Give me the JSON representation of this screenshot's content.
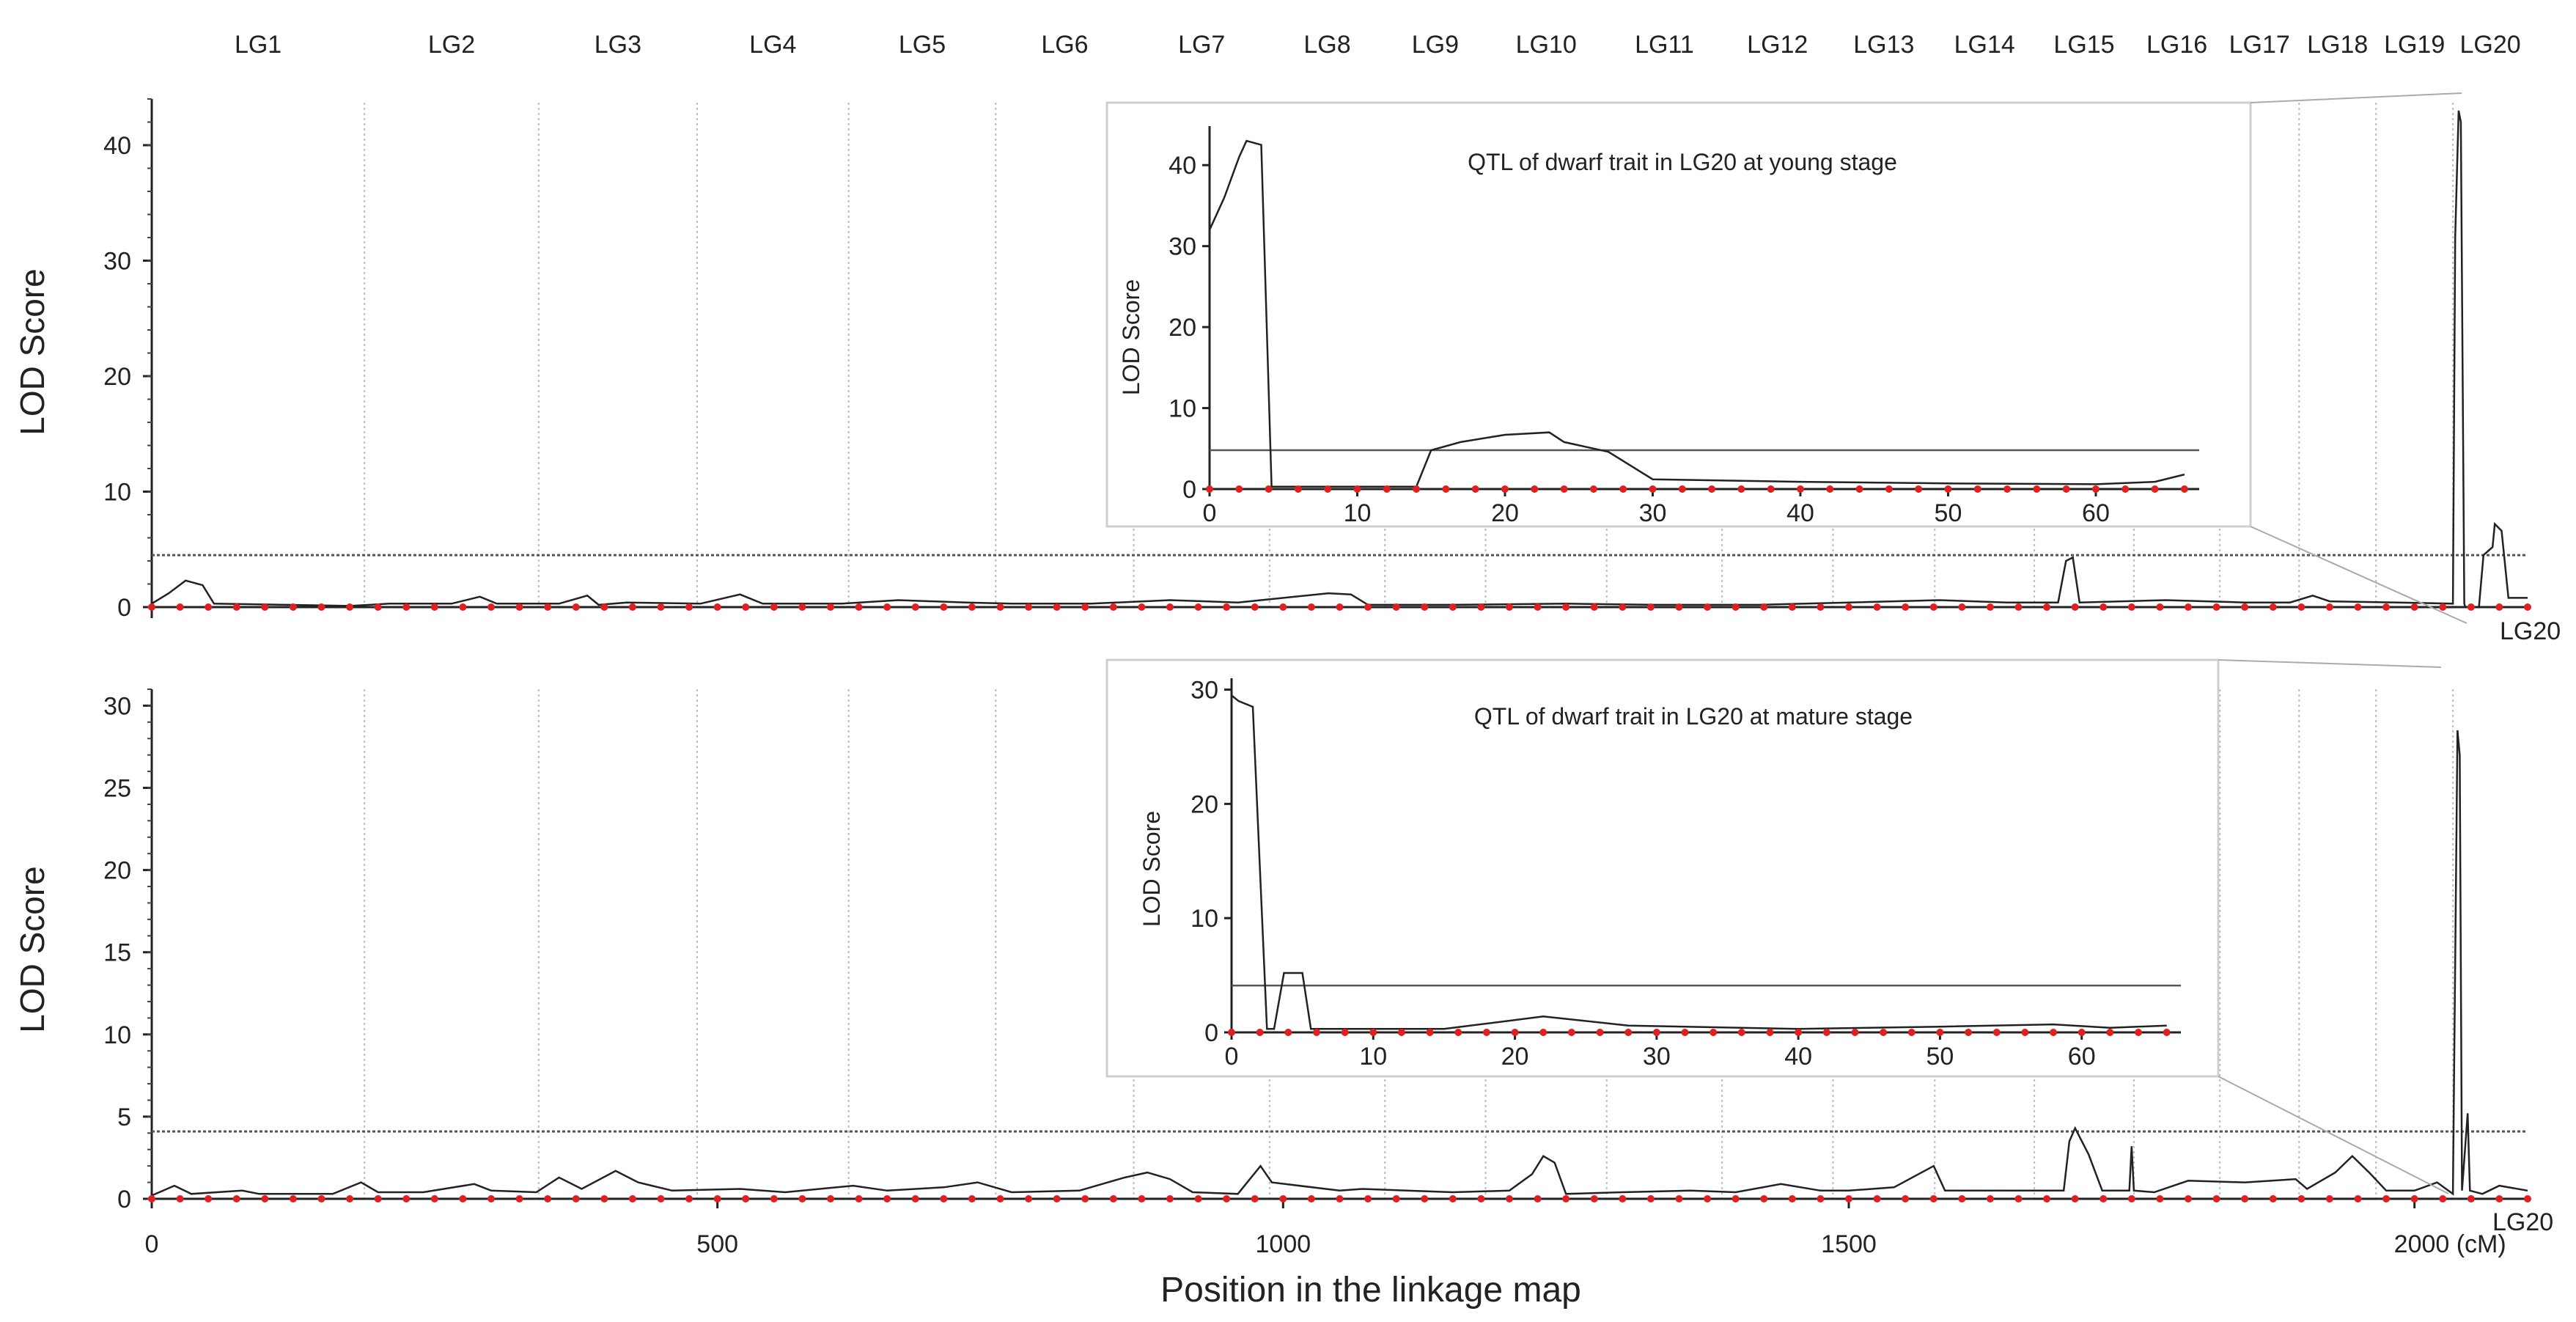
{
  "figure": {
    "linkage_groups": [
      "LG1",
      "LG2",
      "LG3",
      "LG4",
      "LG5",
      "LG6",
      "LG7",
      "LG8",
      "LG9",
      "LG10",
      "LG11",
      "LG12",
      "LG13",
      "LG14",
      "LG15",
      "LG16",
      "LG17",
      "LG18",
      "LG19",
      "LG20"
    ],
    "lg_boundaries_cM": [
      0,
      188,
      342,
      482,
      616,
      746,
      868,
      988,
      1090,
      1179,
      1286,
      1388,
      1486,
      1576,
      1664,
      1752,
      1828,
      1898,
      1966,
      2034,
      2100
    ],
    "x_axis_label": "Position in the linkage map",
    "x_ticks": [
      "0",
      "500",
      "1000",
      "1500",
      "2000 (cM)"
    ],
    "x_tick_values": [
      0,
      500,
      1000,
      1500,
      2000
    ],
    "lg20_label": "LG20",
    "inset_x_ticks": [
      "0",
      "10",
      "20",
      "30",
      "40",
      "50",
      "60"
    ],
    "inset_x_tick_values": [
      0,
      10,
      20,
      30,
      40,
      50,
      60
    ],
    "inset_x_range": [
      0,
      67
    ],
    "colors": {
      "curve": "#222222",
      "threshold": "#555555",
      "markers": "#e02020",
      "guide": "#9a9a9a"
    }
  },
  "chart_data": [
    {
      "type": "line",
      "id": "young-genome",
      "ylabel": "LOD Score",
      "yticks": [
        "0",
        "10",
        "20",
        "30",
        "40"
      ],
      "ytick_values": [
        0,
        10,
        20,
        30,
        40
      ],
      "ylim": [
        0,
        44
      ],
      "threshold": 4.5,
      "series": [
        {
          "points": [
            [
              0,
              0.3
            ],
            [
              15,
              1.2
            ],
            [
              30,
              2.3
            ],
            [
              45,
              1.9
            ],
            [
              55,
              0.3
            ],
            [
              120,
              0.2
            ],
            [
              175,
              0.1
            ],
            [
              210,
              0.3
            ],
            [
              265,
              0.3
            ],
            [
              290,
              0.9
            ],
            [
              305,
              0.3
            ],
            [
              360,
              0.3
            ],
            [
              385,
              1.0
            ],
            [
              395,
              0.2
            ],
            [
              420,
              0.4
            ],
            [
              485,
              0.3
            ],
            [
              520,
              1.1
            ],
            [
              540,
              0.3
            ],
            [
              610,
              0.3
            ],
            [
              660,
              0.6
            ],
            [
              720,
              0.4
            ],
            [
              760,
              0.3
            ],
            [
              830,
              0.3
            ],
            [
              900,
              0.6
            ],
            [
              960,
              0.4
            ],
            [
              1040,
              1.2
            ],
            [
              1060,
              1.1
            ],
            [
              1075,
              0.2
            ],
            [
              1150,
              0.2
            ],
            [
              1250,
              0.3
            ],
            [
              1330,
              0.2
            ],
            [
              1420,
              0.2
            ],
            [
              1500,
              0.4
            ],
            [
              1580,
              0.6
            ],
            [
              1640,
              0.4
            ],
            [
              1685,
              0.4
            ],
            [
              1692,
              4.0
            ],
            [
              1698,
              4.3
            ],
            [
              1704,
              0.4
            ],
            [
              1780,
              0.6
            ],
            [
              1850,
              0.4
            ],
            [
              1890,
              0.4
            ],
            [
              1910,
              1.0
            ],
            [
              1925,
              0.5
            ],
            [
              1985,
              0.4
            ],
            [
              2034,
              0.3
            ],
            [
              2036,
              32
            ],
            [
              2039,
              43
            ],
            [
              2041,
              42
            ],
            [
              2044,
              0.3
            ],
            [
              2045,
              0
            ],
            [
              2057,
              0
            ],
            [
              2061,
              4.5
            ],
            [
              2069,
              5.2
            ],
            [
              2071,
              7.2
            ],
            [
              2077,
              6.6
            ],
            [
              2083,
              0.8
            ],
            [
              2100,
              0.8
            ]
          ]
        }
      ],
      "markers_cM": [
        0,
        25,
        50,
        75,
        100,
        125,
        150,
        175,
        200,
        225,
        250,
        275,
        300,
        325,
        350,
        375,
        400,
        425,
        450,
        475,
        500,
        525,
        550,
        575,
        600,
        625,
        650,
        675,
        700,
        725,
        750,
        775,
        800,
        825,
        850,
        875,
        900,
        925,
        950,
        975,
        1000,
        1025,
        1050,
        1075,
        1100,
        1125,
        1150,
        1175,
        1200,
        1225,
        1250,
        1275,
        1300,
        1325,
        1350,
        1375,
        1400,
        1425,
        1450,
        1475,
        1500,
        1525,
        1550,
        1575,
        1600,
        1625,
        1650,
        1675,
        1700,
        1725,
        1750,
        1775,
        1800,
        1825,
        1850,
        1875,
        1900,
        1925,
        1950,
        1975,
        2000,
        2025,
        2050,
        2075,
        2100
      ]
    },
    {
      "type": "line",
      "id": "mature-genome",
      "ylabel": "LOD Score",
      "yticks": [
        "0",
        "5",
        "10",
        "15",
        "20",
        "25",
        "30"
      ],
      "ytick_values": [
        0,
        5,
        10,
        15,
        20,
        25,
        30
      ],
      "ylim": [
        0,
        31
      ],
      "threshold": 4.1,
      "series": [
        {
          "points": [
            [
              0,
              0.2
            ],
            [
              20,
              0.8
            ],
            [
              35,
              0.3
            ],
            [
              80,
              0.5
            ],
            [
              95,
              0.3
            ],
            [
              160,
              0.3
            ],
            [
              185,
              1.0
            ],
            [
              200,
              0.4
            ],
            [
              240,
              0.4
            ],
            [
              285,
              0.9
            ],
            [
              300,
              0.5
            ],
            [
              340,
              0.4
            ],
            [
              360,
              1.3
            ],
            [
              380,
              0.6
            ],
            [
              410,
              1.7
            ],
            [
              430,
              1.0
            ],
            [
              460,
              0.5
            ],
            [
              520,
              0.6
            ],
            [
              560,
              0.4
            ],
            [
              620,
              0.8
            ],
            [
              650,
              0.5
            ],
            [
              700,
              0.7
            ],
            [
              730,
              1.0
            ],
            [
              760,
              0.4
            ],
            [
              820,
              0.5
            ],
            [
              860,
              1.3
            ],
            [
              880,
              1.6
            ],
            [
              900,
              1.2
            ],
            [
              920,
              0.4
            ],
            [
              960,
              0.3
            ],
            [
              980,
              2.0
            ],
            [
              990,
              1.0
            ],
            [
              1050,
              0.5
            ],
            [
              1070,
              0.6
            ],
            [
              1150,
              0.4
            ],
            [
              1200,
              0.5
            ],
            [
              1220,
              1.5
            ],
            [
              1230,
              2.6
            ],
            [
              1240,
              2.2
            ],
            [
              1250,
              0.3
            ],
            [
              1300,
              0.4
            ],
            [
              1360,
              0.5
            ],
            [
              1400,
              0.4
            ],
            [
              1440,
              0.9
            ],
            [
              1475,
              0.5
            ],
            [
              1500,
              0.5
            ],
            [
              1540,
              0.7
            ],
            [
              1575,
              2.0
            ],
            [
              1585,
              0.5
            ],
            [
              1650,
              0.5
            ],
            [
              1690,
              0.5
            ],
            [
              1695,
              3.5
            ],
            [
              1700,
              4.3
            ],
            [
              1712,
              2.7
            ],
            [
              1724,
              0.5
            ],
            [
              1748,
              0.5
            ],
            [
              1750,
              3.2
            ],
            [
              1752,
              0.5
            ],
            [
              1770,
              0.4
            ],
            [
              1800,
              1.1
            ],
            [
              1850,
              1.0
            ],
            [
              1895,
              1.2
            ],
            [
              1905,
              0.6
            ],
            [
              1930,
              1.6
            ],
            [
              1945,
              2.6
            ],
            [
              1960,
              1.6
            ],
            [
              1975,
              0.5
            ],
            [
              2000,
              0.5
            ],
            [
              2020,
              1.0
            ],
            [
              2034,
              0.3
            ],
            [
              2038,
              28.5
            ],
            [
              2040,
              27
            ],
            [
              2042,
              0.5
            ],
            [
              2047,
              5.2
            ],
            [
              2049,
              0.5
            ],
            [
              2060,
              0.3
            ],
            [
              2075,
              0.8
            ],
            [
              2100,
              0.5
            ]
          ]
        }
      ],
      "markers_cM": [
        0,
        25,
        50,
        75,
        100,
        125,
        150,
        175,
        200,
        225,
        250,
        275,
        300,
        325,
        350,
        375,
        400,
        425,
        450,
        475,
        500,
        525,
        550,
        575,
        600,
        625,
        650,
        675,
        700,
        725,
        750,
        775,
        800,
        825,
        850,
        875,
        900,
        925,
        950,
        975,
        1000,
        1025,
        1050,
        1075,
        1100,
        1125,
        1150,
        1175,
        1200,
        1225,
        1250,
        1275,
        1300,
        1325,
        1350,
        1375,
        1400,
        1425,
        1450,
        1475,
        1500,
        1525,
        1550,
        1575,
        1600,
        1625,
        1650,
        1675,
        1700,
        1725,
        1750,
        1775,
        1800,
        1825,
        1850,
        1875,
        1900,
        1925,
        1950,
        1975,
        2000,
        2025,
        2050,
        2075,
        2100
      ]
    },
    {
      "type": "line",
      "id": "young-inset",
      "title": "QTL of dwarf trait in LG20 at young stage",
      "ylabel": "LOD Score",
      "yticks": [
        "0",
        "10",
        "20",
        "30",
        "40"
      ],
      "ytick_values": [
        0,
        10,
        20,
        30,
        40
      ],
      "ylim": [
        0,
        45
      ],
      "threshold": 4.8,
      "series": [
        {
          "points": [
            [
              0,
              32
            ],
            [
              1,
              36
            ],
            [
              2,
              41
            ],
            [
              2.5,
              43
            ],
            [
              3.5,
              42.5
            ],
            [
              4.2,
              0.3
            ],
            [
              10,
              0.3
            ],
            [
              14,
              0.3
            ],
            [
              15,
              4.8
            ],
            [
              17,
              5.8
            ],
            [
              20,
              6.7
            ],
            [
              23,
              7.0
            ],
            [
              24,
              5.8
            ],
            [
              27,
              4.6
            ],
            [
              30,
              1.2
            ],
            [
              40,
              0.9
            ],
            [
              50,
              0.7
            ],
            [
              60,
              0.6
            ],
            [
              64,
              0.9
            ],
            [
              66,
              1.8
            ]
          ]
        }
      ],
      "markers": [
        0,
        2,
        4,
        6,
        8,
        10,
        12,
        14,
        16,
        18,
        20,
        22,
        24,
        26,
        28,
        30,
        32,
        34,
        36,
        38,
        40,
        42,
        44,
        46,
        48,
        50,
        52,
        54,
        56,
        58,
        60,
        62,
        64,
        66
      ]
    },
    {
      "type": "line",
      "id": "mature-inset",
      "title": "QTL of dwarf trait in LG20 at mature stage",
      "ylabel": "LOD Score",
      "yticks": [
        "0",
        "10",
        "20",
        "30"
      ],
      "ytick_values": [
        0,
        10,
        20,
        30
      ],
      "ylim": [
        0,
        31
      ],
      "threshold": 4.1,
      "series": [
        {
          "points": [
            [
              0,
              29.5
            ],
            [
              0.5,
              29
            ],
            [
              1.5,
              28.5
            ],
            [
              2.5,
              0.3
            ],
            [
              3,
              0.3
            ],
            [
              3.7,
              5.2
            ],
            [
              5,
              5.2
            ],
            [
              5.6,
              0.3
            ],
            [
              15,
              0.3
            ],
            [
              22,
              1.4
            ],
            [
              28,
              0.6
            ],
            [
              40,
              0.3
            ],
            [
              50,
              0.5
            ],
            [
              58,
              0.7
            ],
            [
              62,
              0.4
            ],
            [
              66,
              0.6
            ]
          ]
        }
      ],
      "markers": [
        0,
        2,
        4,
        6,
        8,
        10,
        12,
        14,
        16,
        18,
        20,
        22,
        24,
        26,
        28,
        30,
        32,
        34,
        36,
        38,
        40,
        42,
        44,
        46,
        48,
        50,
        52,
        54,
        56,
        58,
        60,
        62,
        64,
        66
      ]
    }
  ]
}
